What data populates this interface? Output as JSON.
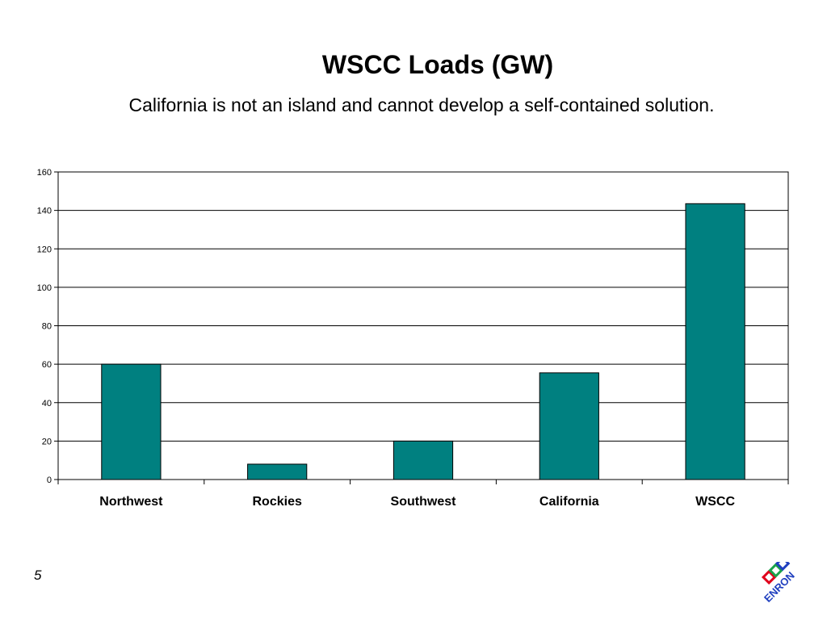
{
  "slide": {
    "title": "WSCC Loads (GW)",
    "subtitle": "California is not an island and cannot develop a self-contained solution.",
    "page_number": "5",
    "logo_text": "ENRON"
  },
  "colors": {
    "bar": "#008080",
    "bar_stroke": "#000000",
    "grid": "#000000"
  },
  "chart_data": {
    "type": "bar",
    "categories": [
      "Northwest",
      "Rockies",
      "Southwest",
      "California",
      "WSCC"
    ],
    "values": [
      60,
      8,
      20,
      55.5,
      143.5
    ],
    "ylim": [
      0,
      160
    ],
    "yticks": [
      0,
      20,
      40,
      60,
      80,
      100,
      120,
      140,
      160
    ],
    "grid": true,
    "legend": "none"
  }
}
